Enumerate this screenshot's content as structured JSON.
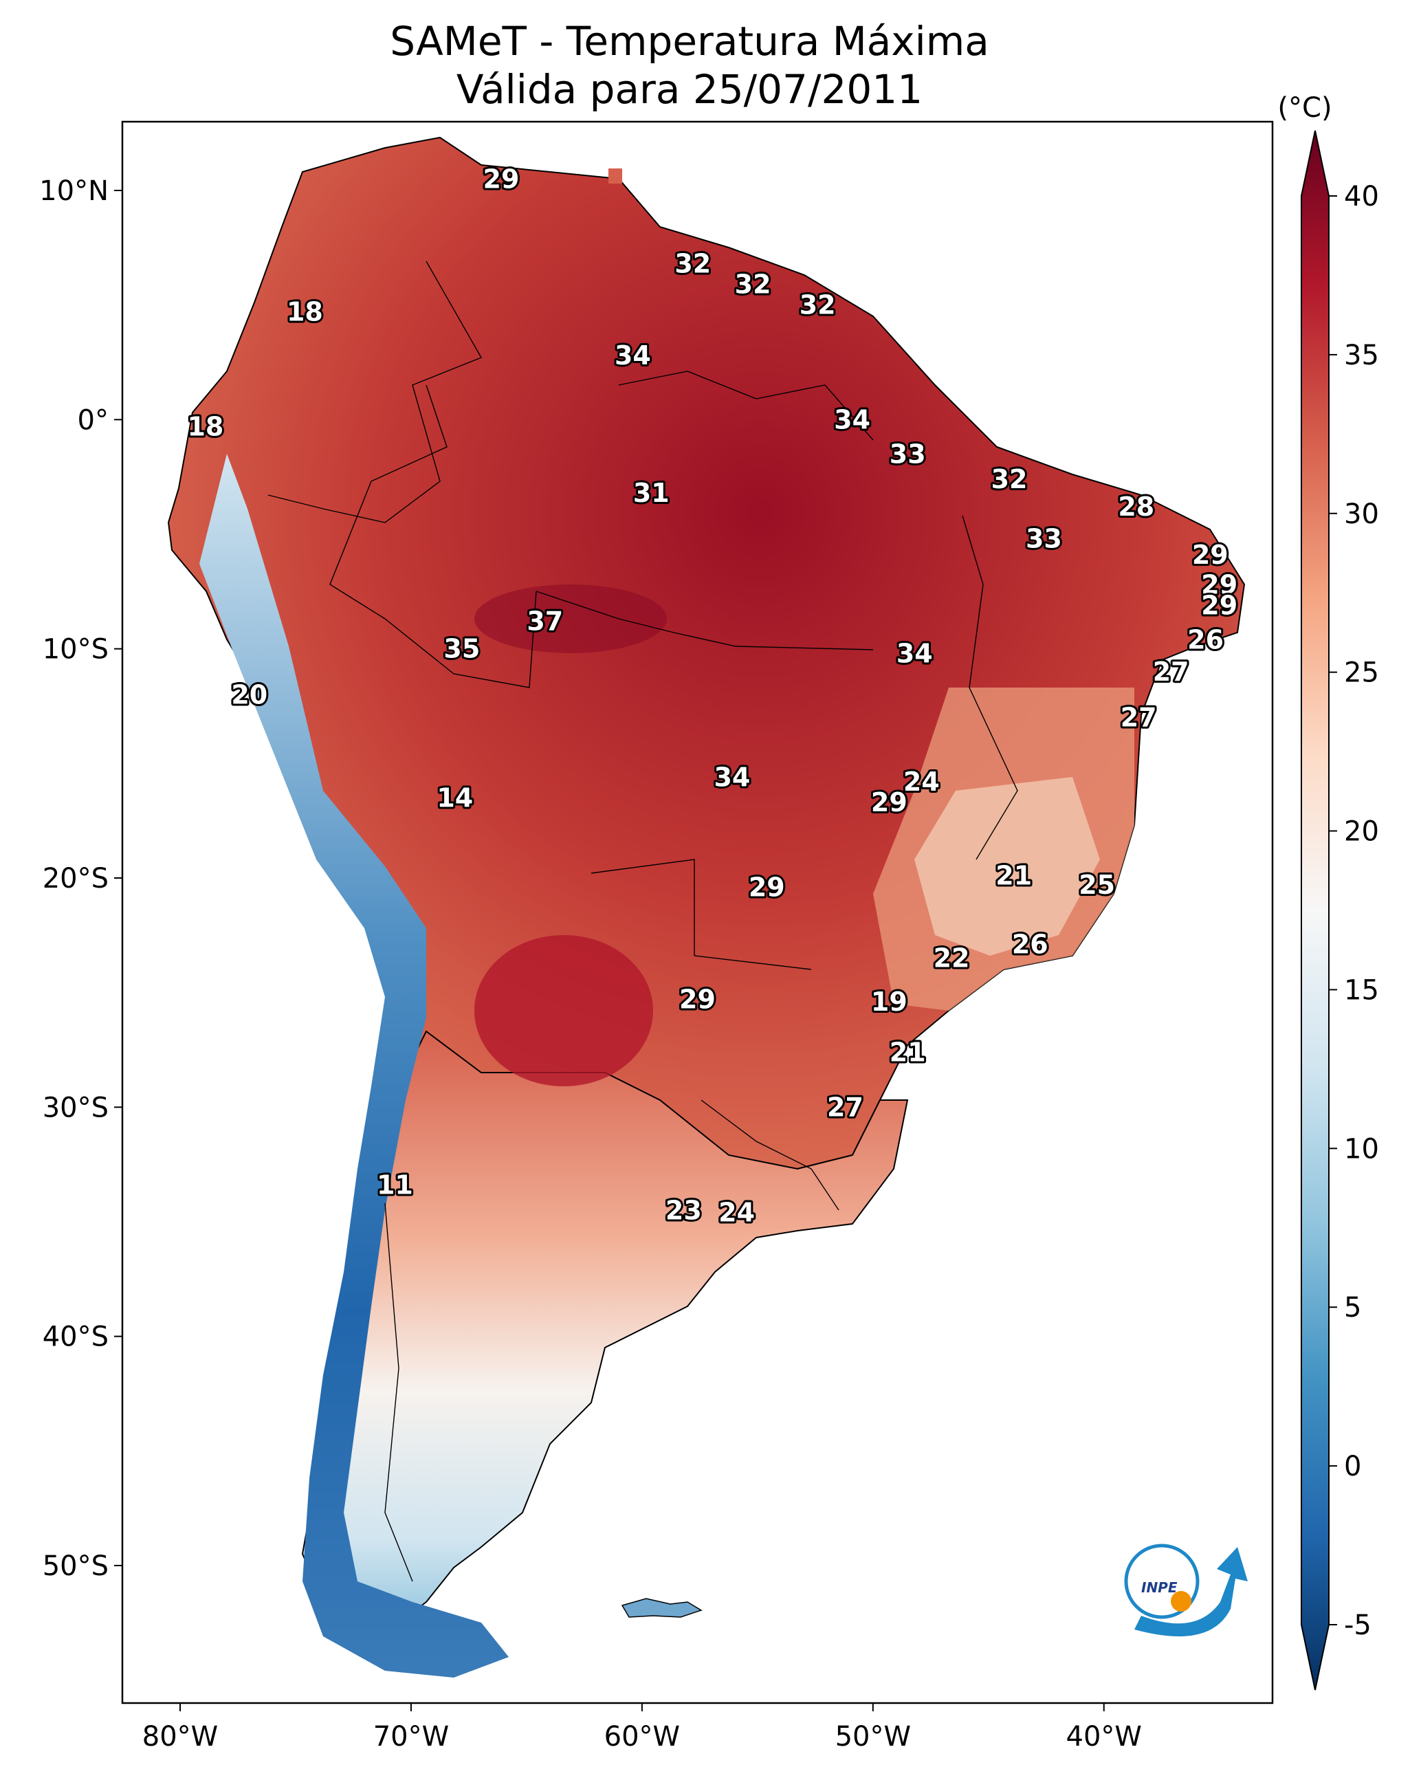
{
  "title_line1": "SAMeT - Temperatura Máxima",
  "title_line2": "Válida para 25/07/2011",
  "colorbar": {
    "unit": "(°C)",
    "min": -5,
    "max": 40,
    "ticks": [
      "40",
      "35",
      "30",
      "25",
      "20",
      "15",
      "10",
      "5",
      "0",
      "-5"
    ],
    "colors": [
      "#053061",
      "#2166ac",
      "#4393c3",
      "#92c5de",
      "#d1e5f0",
      "#f7f7f7",
      "#fddbc7",
      "#f4a582",
      "#d6604d",
      "#b2182b",
      "#67001f"
    ]
  },
  "axes": {
    "lon_ticks": [
      "80°W",
      "70°W",
      "60°W",
      "50°W",
      "40°W"
    ],
    "lat_ticks": [
      "10°N",
      "0°",
      "10°S",
      "20°S",
      "30°S",
      "40°S",
      "50°S"
    ]
  },
  "station_values": [
    {
      "lon": -66.1,
      "lat": 10.5,
      "text": "29"
    },
    {
      "lon": -74.6,
      "lat": 4.7,
      "text": "18"
    },
    {
      "lon": -57.8,
      "lat": 6.8,
      "text": "32"
    },
    {
      "lon": -55.2,
      "lat": 5.9,
      "text": "32"
    },
    {
      "lon": -52.4,
      "lat": 5.0,
      "text": "32"
    },
    {
      "lon": -60.4,
      "lat": 2.8,
      "text": "34"
    },
    {
      "lon": -78.9,
      "lat": -0.3,
      "text": "18"
    },
    {
      "lon": -50.9,
      "lat": 0.0,
      "text": "34"
    },
    {
      "lon": -48.5,
      "lat": -1.5,
      "text": "33"
    },
    {
      "lon": -59.6,
      "lat": -3.2,
      "text": "31"
    },
    {
      "lon": -44.1,
      "lat": -2.6,
      "text": "32"
    },
    {
      "lon": -38.6,
      "lat": -3.8,
      "text": "28"
    },
    {
      "lon": -42.6,
      "lat": -5.2,
      "text": "33"
    },
    {
      "lon": -35.4,
      "lat": -5.9,
      "text": "29"
    },
    {
      "lon": -35.0,
      "lat": -7.2,
      "text": "29"
    },
    {
      "lon": -35.0,
      "lat": -8.1,
      "text": "29"
    },
    {
      "lon": -64.2,
      "lat": -8.8,
      "text": "37"
    },
    {
      "lon": -67.8,
      "lat": -10.0,
      "text": "35"
    },
    {
      "lon": -48.2,
      "lat": -10.2,
      "text": "34"
    },
    {
      "lon": -35.6,
      "lat": -9.6,
      "text": "26"
    },
    {
      "lon": -37.1,
      "lat": -11.0,
      "text": "27"
    },
    {
      "lon": -77.0,
      "lat": -12.0,
      "text": "20"
    },
    {
      "lon": -38.5,
      "lat": -13.0,
      "text": "27"
    },
    {
      "lon": -56.1,
      "lat": -15.6,
      "text": "34"
    },
    {
      "lon": -47.9,
      "lat": -15.8,
      "text": "24"
    },
    {
      "lon": -49.3,
      "lat": -16.7,
      "text": "29"
    },
    {
      "lon": -68.1,
      "lat": -16.5,
      "text": "14"
    },
    {
      "lon": -43.9,
      "lat": -19.9,
      "text": "21"
    },
    {
      "lon": -40.3,
      "lat": -20.3,
      "text": "25"
    },
    {
      "lon": -54.6,
      "lat": -20.4,
      "text": "29"
    },
    {
      "lon": -46.6,
      "lat": -23.5,
      "text": "22"
    },
    {
      "lon": -43.2,
      "lat": -22.9,
      "text": "26"
    },
    {
      "lon": -57.6,
      "lat": -25.3,
      "text": "29"
    },
    {
      "lon": -49.3,
      "lat": -25.4,
      "text": "19"
    },
    {
      "lon": -48.5,
      "lat": -27.6,
      "text": "21"
    },
    {
      "lon": -51.2,
      "lat": -30.0,
      "text": "27"
    },
    {
      "lon": -70.7,
      "lat": -33.4,
      "text": "11"
    },
    {
      "lon": -58.2,
      "lat": -34.5,
      "text": "23"
    },
    {
      "lon": -55.9,
      "lat": -34.6,
      "text": "24"
    }
  ]
}
